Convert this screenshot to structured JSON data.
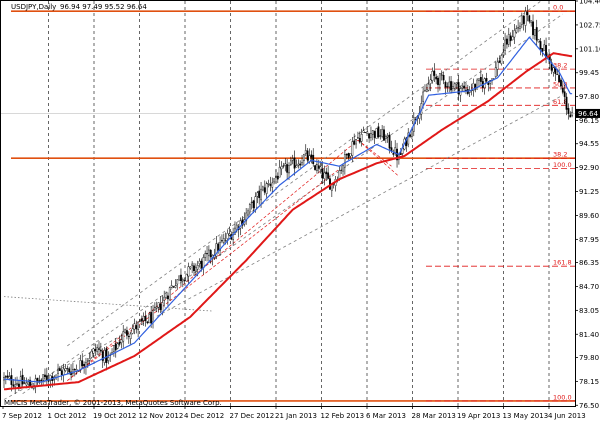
{
  "header": {
    "title": "USDJPY,Daily",
    "ohlc": "96.94 97.49 95.52 96.64"
  },
  "copyright": "MMCIS MetaTrader, © 2001-2013, MetaQuotes Software Corp.",
  "current_price_label": "96.64",
  "colors": {
    "background": "#ffffff",
    "candle": "#000000",
    "ma_fast": "#3060e0",
    "ma_slow": "#e01818",
    "hline": "#e05010",
    "fib": "#e01818",
    "channel": "#808080",
    "grid": "#000000"
  },
  "chart_data": {
    "type": "candlestick",
    "symbol": "USDJPY",
    "timeframe": "Daily",
    "ylim": [
      76.45,
      104.4
    ],
    "price_ticks": [
      "104.40",
      "102.75",
      "101.10",
      "99.45",
      "97.80",
      "96.15",
      "94.55",
      "92.90",
      "91.25",
      "89.60",
      "87.95",
      "86.35",
      "84.70",
      "83.05",
      "81.40",
      "79.80",
      "78.15",
      "76.50"
    ],
    "date_ticks": [
      "7 Sep 2012",
      "1 Oct 2012",
      "19 Oct 2012",
      "12 Nov 2012",
      "4 Dec 2012",
      "27 Dec 2012",
      "21 Jan 2013",
      "12 Feb 2013",
      "6 Mar 2013",
      "28 Mar 2013",
      "19 Apr 2013",
      "13 May 2013",
      "4 Jun 2013"
    ],
    "grid": "vertical-dashed",
    "close_waypoints": [
      [
        0,
        78.3
      ],
      [
        14,
        77.9
      ],
      [
        20,
        78.2
      ],
      [
        30,
        78.8
      ],
      [
        38,
        79.0
      ],
      [
        50,
        80.4
      ],
      [
        56,
        79.6
      ],
      [
        64,
        81.4
      ],
      [
        80,
        82.6
      ],
      [
        92,
        85.1
      ],
      [
        106,
        86.3
      ],
      [
        118,
        87.8
      ],
      [
        128,
        89.3
      ],
      [
        138,
        91.2
      ],
      [
        147,
        92.4
      ],
      [
        162,
        93.7
      ],
      [
        176,
        91.7
      ],
      [
        182,
        93.2
      ],
      [
        188,
        94.8
      ],
      [
        195,
        95.4
      ],
      [
        204,
        95.1
      ],
      [
        212,
        93.5
      ],
      [
        222,
        96.8
      ],
      [
        230,
        99.2
      ],
      [
        248,
        98.2
      ],
      [
        262,
        99.1
      ],
      [
        270,
        101.6
      ],
      [
        280,
        103.3
      ],
      [
        290,
        101.0
      ],
      [
        298,
        98.8
      ],
      [
        304,
        96.4
      ]
    ],
    "ma_fast_waypoints": [
      [
        0,
        78.3
      ],
      [
        20,
        78.1
      ],
      [
        40,
        78.9
      ],
      [
        56,
        79.9
      ],
      [
        70,
        80.8
      ],
      [
        90,
        83.6
      ],
      [
        110,
        86.4
      ],
      [
        130,
        89.3
      ],
      [
        148,
        91.7
      ],
      [
        165,
        93.4
      ],
      [
        180,
        93.0
      ],
      [
        200,
        94.5
      ],
      [
        212,
        93.8
      ],
      [
        228,
        97.9
      ],
      [
        250,
        98.2
      ],
      [
        265,
        99.1
      ],
      [
        282,
        101.9
      ],
      [
        298,
        99.5
      ],
      [
        304,
        98.0
      ]
    ],
    "ma_slow_waypoints": [
      [
        0,
        77.6
      ],
      [
        40,
        78.1
      ],
      [
        70,
        79.9
      ],
      [
        100,
        82.6
      ],
      [
        130,
        86.5
      ],
      [
        155,
        90.0
      ],
      [
        180,
        92.1
      ],
      [
        200,
        93.2
      ],
      [
        215,
        93.7
      ],
      [
        235,
        95.5
      ],
      [
        260,
        97.5
      ],
      [
        280,
        99.5
      ],
      [
        295,
        100.8
      ],
      [
        304,
        100.6
      ]
    ],
    "horizontal_lines": [
      {
        "price": 103.7
      },
      {
        "price": 93.55
      },
      {
        "price": 76.8
      }
    ],
    "fibonacci": {
      "levels": [
        {
          "label": "0.0",
          "price": 103.7
        },
        {
          "label": "38.2",
          "price": 99.7
        },
        {
          "label": "50.0",
          "price": 98.4
        },
        {
          "label": "61.8",
          "price": 97.2
        },
        {
          "label": "38.2",
          "price": 93.55
        },
        {
          "label": "100.0",
          "price": 92.85
        },
        {
          "label": "161.8",
          "price": 86.1
        },
        {
          "label": "100.0",
          "price": 76.8
        }
      ]
    },
    "channel_lines": [
      {
        "from": [
          34,
          80.6
        ],
        "to": [
          300,
          105.5
        ],
        "style": "dashed"
      },
      {
        "from": [
          10,
          77.3
        ],
        "to": [
          300,
          103.5
        ],
        "style": "dashed"
      },
      {
        "from": [
          0,
          76.9
        ],
        "to": [
          300,
          97.9
        ],
        "style": "dashed"
      },
      {
        "from": [
          0,
          84.0
        ],
        "to": [
          112,
          83.0
        ],
        "style": "dotted"
      }
    ],
    "fib_fan_lines": [
      {
        "from": [
          34,
          78.2
        ],
        "to": [
          190,
          94.8
        ]
      },
      {
        "from": [
          34,
          78.2
        ],
        "to": [
          180,
          92.8
        ]
      },
      {
        "from": [
          190,
          94.8
        ],
        "to": [
          212,
          92.3
        ]
      },
      {
        "from": [
          190,
          94.8
        ],
        "to": [
          208,
          93.0
        ]
      }
    ]
  }
}
